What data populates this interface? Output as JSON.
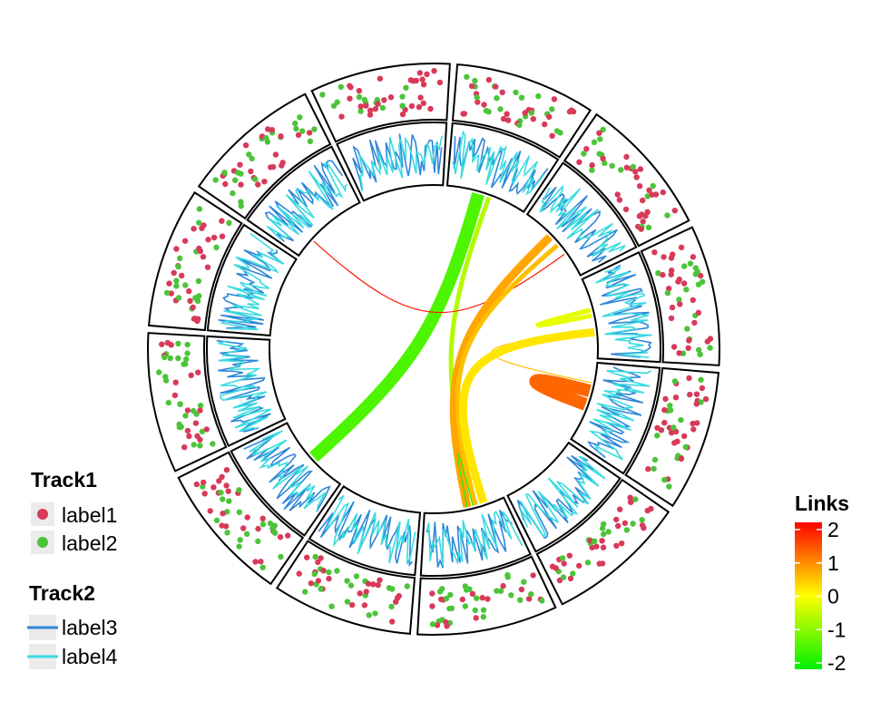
{
  "chart_data": {
    "type": "circos",
    "sectors": 12,
    "colors": {
      "label1": "#D83A5A",
      "label2": "#4CC43A",
      "label3": "#2F86D8",
      "label4": "#3ADBE0",
      "sector_border": "#000000",
      "link_gradient": [
        "#00F000",
        "#FFFF00",
        "#FF0000"
      ]
    },
    "legends": {
      "track1": {
        "title": "Track1",
        "items": [
          {
            "label": "label1",
            "color": "#D83A5A",
            "shape": "point"
          },
          {
            "label": "label2",
            "color": "#4CC43A",
            "shape": "point"
          }
        ]
      },
      "track2": {
        "title": "Track2",
        "items": [
          {
            "label": "label3",
            "color": "#2F86D8",
            "shape": "line"
          },
          {
            "label": "label4",
            "color": "#3ADBE0",
            "shape": "line"
          }
        ]
      },
      "links": {
        "title": "Links",
        "ticks": [
          "2",
          "1",
          "0",
          "-1",
          "-2"
        ],
        "range": [
          -2,
          2
        ]
      }
    },
    "links": [
      {
        "from_sector": 0,
        "to_sector": 7,
        "value": -1.4,
        "width": "thick"
      },
      {
        "from_sector": 0,
        "to_sector": 5,
        "value": -0.6,
        "width": "thin"
      },
      {
        "from_sector": 1,
        "to_sector": 10,
        "value": 1.8,
        "width": "hairline"
      },
      {
        "from_sector": 1,
        "to_sector": 5,
        "value": 0.7,
        "width": "medium"
      },
      {
        "from_sector": 1,
        "to_sector": 5,
        "value": 0.5,
        "width": "thin"
      },
      {
        "from_sector": 2,
        "to_sector": 3,
        "value": 0.5,
        "width": "hairline"
      },
      {
        "from_sector": 2,
        "to_sector": 2,
        "value": -0.2,
        "width": "thin"
      },
      {
        "from_sector": 3,
        "to_sector": 3,
        "value": 1.2,
        "width": "thick"
      },
      {
        "from_sector": 2,
        "to_sector": 5,
        "value": 0.2,
        "width": "medium"
      },
      {
        "from_sector": 5,
        "to_sector": 5,
        "value": -1.8,
        "width": "hairline"
      }
    ]
  }
}
